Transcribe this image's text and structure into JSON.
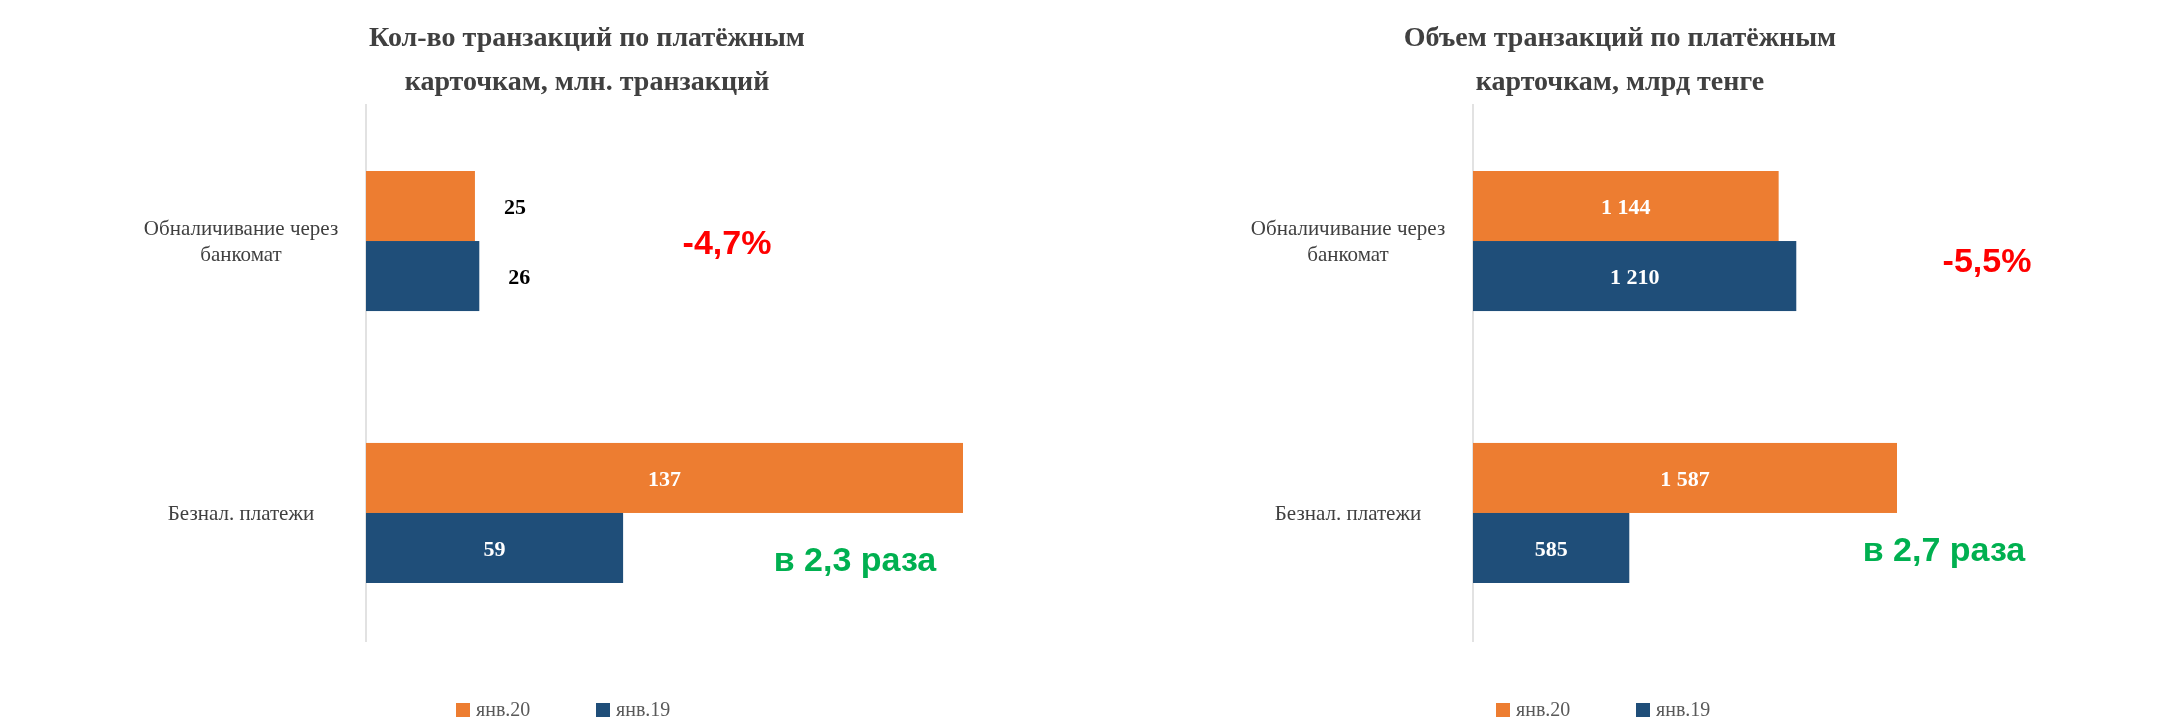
{
  "chart_data": [
    {
      "type": "bar",
      "orientation": "horizontal",
      "title": "Кол-во транзакций по платёжным карточкам, млн. транзакций",
      "categories": [
        "Обналичивание через банкомат",
        "Безнал. платежи"
      ],
      "series": [
        {
          "name": "янв.20",
          "color": "#ed7d31",
          "values": [
            25,
            137
          ]
        },
        {
          "name": "янв.19",
          "color": "#1f4e79",
          "values": [
            26,
            59
          ]
        }
      ],
      "data_labels": true,
      "legend": "bottom",
      "annotations": [
        "-4,7%",
        "в 2,3 раза"
      ]
    },
    {
      "type": "bar",
      "orientation": "horizontal",
      "title": "Объем транзакций по платёжным карточкам, млрд тенге",
      "categories": [
        "Обналичивание через банкомат",
        "Безнал. платежи"
      ],
      "series": [
        {
          "name": "янв.20",
          "color": "#ed7d31",
          "values": [
            1144,
            1587
          ]
        },
        {
          "name": "янв.19",
          "color": "#1f4e79",
          "values": [
            1210,
            585
          ]
        }
      ],
      "data_labels": true,
      "legend": "bottom",
      "annotations": [
        "-5,5%",
        "в 2,7 раза"
      ]
    }
  ]
}
